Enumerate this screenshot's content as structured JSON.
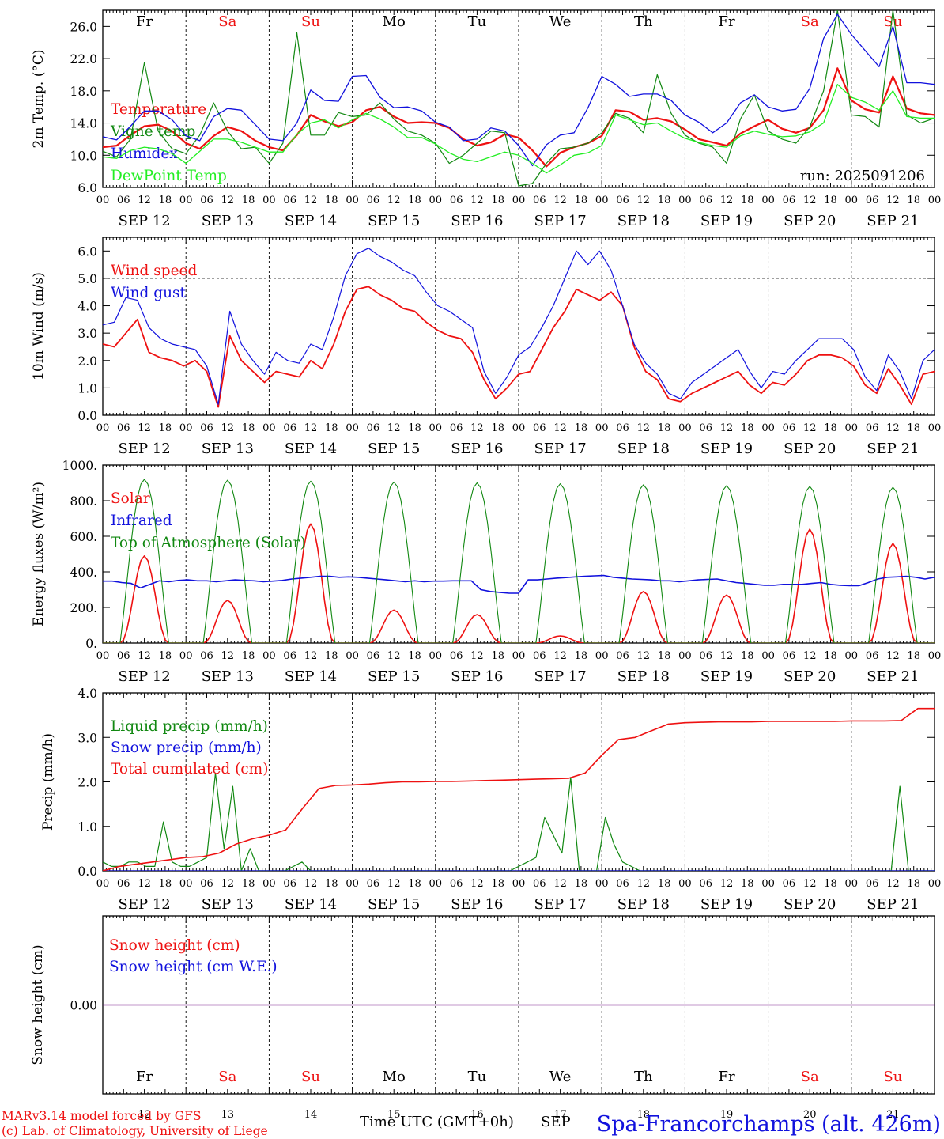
{
  "station_title": "Spa-Francorchamps (alt. 426m)",
  "credits": [
    "MARv3.14 model forced by GFS",
    "(c) Lab. of Climatology, University of Liege"
  ],
  "xaxis_title": "Time UTC (GMT+0h)",
  "bottom_month": "SEP",
  "colors": {
    "red": "#ee1111",
    "blue": "#1111dd",
    "green": "#118811",
    "light_green": "#22ee22",
    "weekend": "#ee1111"
  },
  "time_axis": {
    "start": "2025-09-12T00",
    "end": "2025-09-22T00",
    "hour_labels": [
      "00",
      "06",
      "12",
      "18"
    ],
    "date_labels": [
      "SEP 12",
      "SEP 13",
      "SEP 14",
      "SEP 15",
      "SEP 16",
      "SEP 17",
      "SEP 18",
      "SEP 19",
      "SEP 20",
      "SEP 21"
    ],
    "bottom_day_numbers": [
      "12",
      "13",
      "14",
      "15",
      "16",
      "17",
      "18",
      "19",
      "20",
      "21"
    ],
    "weekdays": [
      {
        "label": "Fr",
        "weekend": false
      },
      {
        "label": "Sa",
        "weekend": true
      },
      {
        "label": "Su",
        "weekend": true
      },
      {
        "label": "Mo",
        "weekend": false
      },
      {
        "label": "Tu",
        "weekend": false
      },
      {
        "label": "We",
        "weekend": false
      },
      {
        "label": "Th",
        "weekend": false
      },
      {
        "label": "Fr",
        "weekend": false
      },
      {
        "label": "Sa",
        "weekend": true
      },
      {
        "label": "Su",
        "weekend": true
      }
    ]
  },
  "chart_data": [
    {
      "type": "line",
      "ylabel": "2m Temp. (°C)",
      "ylim": [
        6,
        28
      ],
      "yticks": [
        6,
        10,
        14,
        18,
        22,
        26
      ],
      "ytick_labels": [
        "6.0",
        "10.0",
        "14.0",
        "18.0",
        "22.0",
        "26.0"
      ],
      "show_weekdays": true,
      "annotation": "run: 2025091206",
      "x_hours_step": 6,
      "series": [
        {
          "name": "Temperature",
          "color": "#ee1111",
          "width": 2.2,
          "values": [
            11.0,
            11.2,
            12.5,
            13.6,
            13.8,
            13.0,
            11.5,
            10.8,
            12.4,
            13.5,
            13.0,
            11.8,
            11.0,
            10.6,
            12.5,
            15.0,
            14.2,
            13.6,
            14.1,
            15.6,
            16.0,
            14.8,
            14.0,
            14.1,
            14.0,
            13.4,
            12.0,
            11.2,
            11.6,
            12.6,
            12.2,
            10.6,
            8.6,
            10.3,
            11.0,
            11.5,
            12.4,
            15.6,
            15.4,
            14.4,
            14.6,
            14.2,
            13.2,
            12.0,
            11.6,
            11.2,
            12.7,
            13.6,
            14.4,
            13.3,
            12.8,
            13.4,
            15.6,
            20.8,
            16.8,
            15.7,
            15.3,
            19.8,
            15.8,
            15.2,
            15.0
          ]
        },
        {
          "name": "Vigne temp",
          "color": "#118811",
          "width": 1.2,
          "values": [
            10.5,
            9.8,
            12.0,
            21.5,
            13.0,
            10.8,
            10.2,
            12.5,
            16.5,
            13.0,
            10.8,
            11.0,
            9.0,
            11.5,
            25.2,
            12.5,
            12.5,
            15.3,
            14.8,
            15.0,
            16.5,
            14.5,
            13.0,
            12.5,
            11.5,
            9.0,
            10.0,
            11.5,
            13.0,
            12.8,
            6.2,
            6.5,
            9.0,
            10.8,
            11.0,
            11.5,
            12.8,
            15.2,
            14.6,
            12.8,
            20.0,
            15.2,
            12.5,
            11.5,
            11.0,
            9.0,
            14.5,
            17.5,
            13.0,
            12.0,
            11.5,
            13.5,
            18.0,
            28.0,
            15.0,
            14.8,
            13.5,
            28.0,
            15.0,
            14.0,
            14.6
          ]
        },
        {
          "name": "Humidex",
          "color": "#1111dd",
          "width": 1.3,
          "values": [
            12.3,
            11.9,
            13.6,
            15.5,
            15.5,
            14.4,
            12.4,
            11.8,
            14.8,
            15.8,
            15.6,
            13.8,
            12.0,
            11.8,
            14.0,
            18.1,
            16.8,
            16.7,
            19.8,
            19.9,
            17.2,
            15.9,
            16.0,
            15.5,
            14.1,
            13.5,
            11.8,
            12.0,
            13.4,
            13.0,
            11.2,
            8.7,
            11.3,
            12.5,
            12.8,
            15.9,
            19.8,
            18.8,
            17.3,
            17.6,
            17.6,
            16.8,
            15.0,
            14.1,
            12.8,
            14.0,
            16.5,
            17.5,
            16.0,
            15.5,
            15.7,
            18.3,
            24.5,
            27.5,
            25.0,
            23.0,
            21.0,
            26.0,
            19.0,
            19.0,
            18.8
          ]
        },
        {
          "name": "DewPoint Temp",
          "color": "#22ee22",
          "width": 1.3,
          "values": [
            9.8,
            9.6,
            10.6,
            11.0,
            10.8,
            10.2,
            9.0,
            10.5,
            12.0,
            12.0,
            11.6,
            11.0,
            10.4,
            10.4,
            12.6,
            14.0,
            14.4,
            13.4,
            14.4,
            15.2,
            14.5,
            13.5,
            12.2,
            12.2,
            11.4,
            10.3,
            9.5,
            9.2,
            9.8,
            10.4,
            10.0,
            9.0,
            7.8,
            8.8,
            10.0,
            10.3,
            11.2,
            15.0,
            14.4,
            13.8,
            14.0,
            13.0,
            12.1,
            11.6,
            11.2,
            11.0,
            12.4,
            13.0,
            12.6,
            12.3,
            12.4,
            12.9,
            14.0,
            18.8,
            17.2,
            16.6,
            15.6,
            18.0,
            14.8,
            14.6,
            14.6
          ]
        }
      ]
    },
    {
      "type": "line",
      "ylabel": "10m Wind (m/s)",
      "ylim": [
        0,
        6.5
      ],
      "yticks": [
        0,
        1,
        2,
        3,
        4,
        5,
        6
      ],
      "ytick_labels": [
        "0.0",
        "1.0",
        "2.0",
        "3.0",
        "4.0",
        "5.0",
        "6.0"
      ],
      "hline": 5,
      "x_hours_step": 6,
      "series": [
        {
          "name": "Wind speed",
          "color": "#ee1111",
          "width": 1.8,
          "values": [
            2.6,
            2.5,
            3.0,
            3.5,
            2.3,
            2.1,
            2.0,
            1.8,
            2.0,
            1.6,
            0.3,
            2.9,
            2.0,
            1.6,
            1.2,
            1.6,
            1.5,
            1.4,
            2.0,
            1.7,
            2.6,
            3.8,
            4.6,
            4.7,
            4.4,
            4.2,
            3.9,
            3.8,
            3.4,
            3.1,
            2.9,
            2.8,
            2.3,
            1.3,
            0.6,
            1.0,
            1.5,
            1.6,
            2.4,
            3.2,
            3.8,
            4.6,
            4.4,
            4.2,
            4.5,
            4.0,
            2.5,
            1.6,
            1.3,
            0.6,
            0.5,
            0.8,
            1.0,
            1.2,
            1.4,
            1.6,
            1.1,
            0.8,
            1.2,
            1.1,
            1.5,
            2.0,
            2.2,
            2.2,
            2.1,
            1.8,
            1.1,
            0.8,
            1.7,
            1.1,
            0.4,
            1.5,
            1.6
          ]
        },
        {
          "name": "Wind gust",
          "color": "#1111dd",
          "width": 1.2,
          "values": [
            3.3,
            3.4,
            4.3,
            4.2,
            3.2,
            2.8,
            2.6,
            2.5,
            2.4,
            1.8,
            0.4,
            3.8,
            2.6,
            2.0,
            1.5,
            2.3,
            2.0,
            1.9,
            2.6,
            2.4,
            3.6,
            5.1,
            5.9,
            6.1,
            5.8,
            5.6,
            5.3,
            5.1,
            4.5,
            4.0,
            3.8,
            3.5,
            3.2,
            1.6,
            0.8,
            1.4,
            2.2,
            2.5,
            3.2,
            4.0,
            5.0,
            6.0,
            5.5,
            6.0,
            5.3,
            4.0,
            2.6,
            1.9,
            1.5,
            0.8,
            0.6,
            1.2,
            1.5,
            1.8,
            2.1,
            2.4,
            1.6,
            1.0,
            1.6,
            1.5,
            2.0,
            2.4,
            2.8,
            2.8,
            2.8,
            2.4,
            1.4,
            0.9,
            2.2,
            1.6,
            0.6,
            2.0,
            2.4
          ]
        }
      ]
    },
    {
      "type": "line",
      "ylabel": "Energy fluxes (W/m²)",
      "ylim": [
        0,
        1000
      ],
      "yticks": [
        0,
        200,
        400,
        600,
        800,
        1000
      ],
      "ytick_labels": [
        "0.",
        "200.",
        "400.",
        "600.",
        "800.",
        "1000."
      ],
      "x_hours_step": 6,
      "series": [
        {
          "name": "Solar",
          "color": "#ee1111",
          "width": 1.6,
          "days_peak": [
            490,
            240,
            670,
            185,
            160,
            40,
            290,
            270,
            640,
            560
          ]
        },
        {
          "name": "Infrared",
          "color": "#1111dd",
          "width": 1.6,
          "values": [
            348,
            348,
            340,
            335,
            310,
            330,
            350,
            345,
            352,
            355,
            350,
            350,
            345,
            350,
            355,
            352,
            350,
            345,
            348,
            352,
            360,
            365,
            370,
            375,
            375,
            370,
            372,
            370,
            365,
            360,
            355,
            350,
            345,
            350,
            345,
            348,
            348,
            350,
            350,
            350,
            300,
            290,
            285,
            280,
            280,
            355,
            355,
            360,
            365,
            368,
            372,
            375,
            378,
            380,
            370,
            365,
            360,
            358,
            355,
            350,
            350,
            345,
            350,
            355,
            358,
            360,
            350,
            340,
            335,
            330,
            325,
            325,
            330,
            330,
            330,
            335,
            340,
            330,
            325,
            322,
            322,
            340,
            360,
            370,
            372,
            375,
            370,
            360,
            370
          ]
        },
        {
          "name": "Top of Atmosphere (Solar)",
          "color": "#118811",
          "width": 1.1,
          "days_peak": [
            920,
            915,
            910,
            905,
            900,
            895,
            890,
            885,
            880,
            875
          ]
        }
      ]
    },
    {
      "type": "line",
      "ylabel": "Precip (mm/h)",
      "ylim": [
        0,
        4
      ],
      "yticks": [
        0,
        1,
        2,
        3,
        4
      ],
      "ytick_labels": [
        "0.0",
        "1.0",
        "2.0",
        "3.0",
        "4.0"
      ],
      "x_hours_step": 6,
      "series": [
        {
          "name": "Liquid precip (mm/h)",
          "color": "#118811",
          "width": 1.2,
          "values": [
            0.2,
            0.1,
            0.1,
            0.2,
            0.2,
            0.1,
            0.1,
            1.1,
            0.2,
            0.1,
            0.1,
            0.2,
            0.3,
            2.2,
            0.5,
            1.9,
            0,
            0.5,
            0,
            0,
            0,
            0,
            0.1,
            0.2,
            0,
            0,
            0,
            0,
            0,
            0,
            0,
            0,
            0,
            0,
            0,
            0,
            0,
            0,
            0,
            0,
            0,
            0,
            0,
            0,
            0,
            0,
            0,
            0,
            0.1,
            0.2,
            0.3,
            1.2,
            0.8,
            0.4,
            2.1,
            0,
            0,
            0,
            1.2,
            0.6,
            0.2,
            0.1,
            0,
            0,
            0,
            0,
            0,
            0,
            0,
            0,
            0,
            0,
            0,
            0,
            0,
            0,
            0,
            0,
            0,
            0,
            0,
            0,
            0,
            0,
            0,
            0,
            0,
            0,
            0,
            0,
            0,
            0,
            1.9,
            0,
            0,
            0,
            0
          ]
        },
        {
          "name": "Snow precip (mm/h)",
          "color": "#1111dd",
          "width": 1.2,
          "values": [
            0,
            0
          ]
        },
        {
          "name": "Total cumulated (cm)",
          "color": "#ee1111",
          "width": 1.6,
          "values": [
            0.0,
            0.1,
            0.15,
            0.2,
            0.25,
            0.3,
            0.32,
            0.4,
            0.6,
            0.72,
            0.8,
            0.92,
            1.4,
            1.85,
            1.92,
            1.93,
            1.95,
            1.98,
            2.0,
            2.0,
            2.01,
            2.01,
            2.02,
            2.03,
            2.04,
            2.05,
            2.06,
            2.07,
            2.08,
            2.2,
            2.6,
            2.95,
            3.0,
            3.15,
            3.3,
            3.33,
            3.34,
            3.35,
            3.35,
            3.35,
            3.36,
            3.36,
            3.36,
            3.36,
            3.36,
            3.37,
            3.37,
            3.37,
            3.38,
            3.65,
            3.65
          ]
        }
      ]
    },
    {
      "type": "line",
      "ylabel": "Snow height (cm)",
      "ylim": [
        -1,
        1
      ],
      "yticks": [
        0
      ],
      "ytick_labels": [
        "0.00"
      ],
      "x_hours_step": 6,
      "show_weekdays": true,
      "series": [
        {
          "name": "Snow height (cm)",
          "color": "#ee1111",
          "width": 1.3,
          "values": [
            0,
            0
          ]
        },
        {
          "name": "Snow height (cm W.E.)",
          "color": "#1111dd",
          "width": 1.3,
          "values": [
            0,
            0
          ]
        }
      ]
    }
  ]
}
